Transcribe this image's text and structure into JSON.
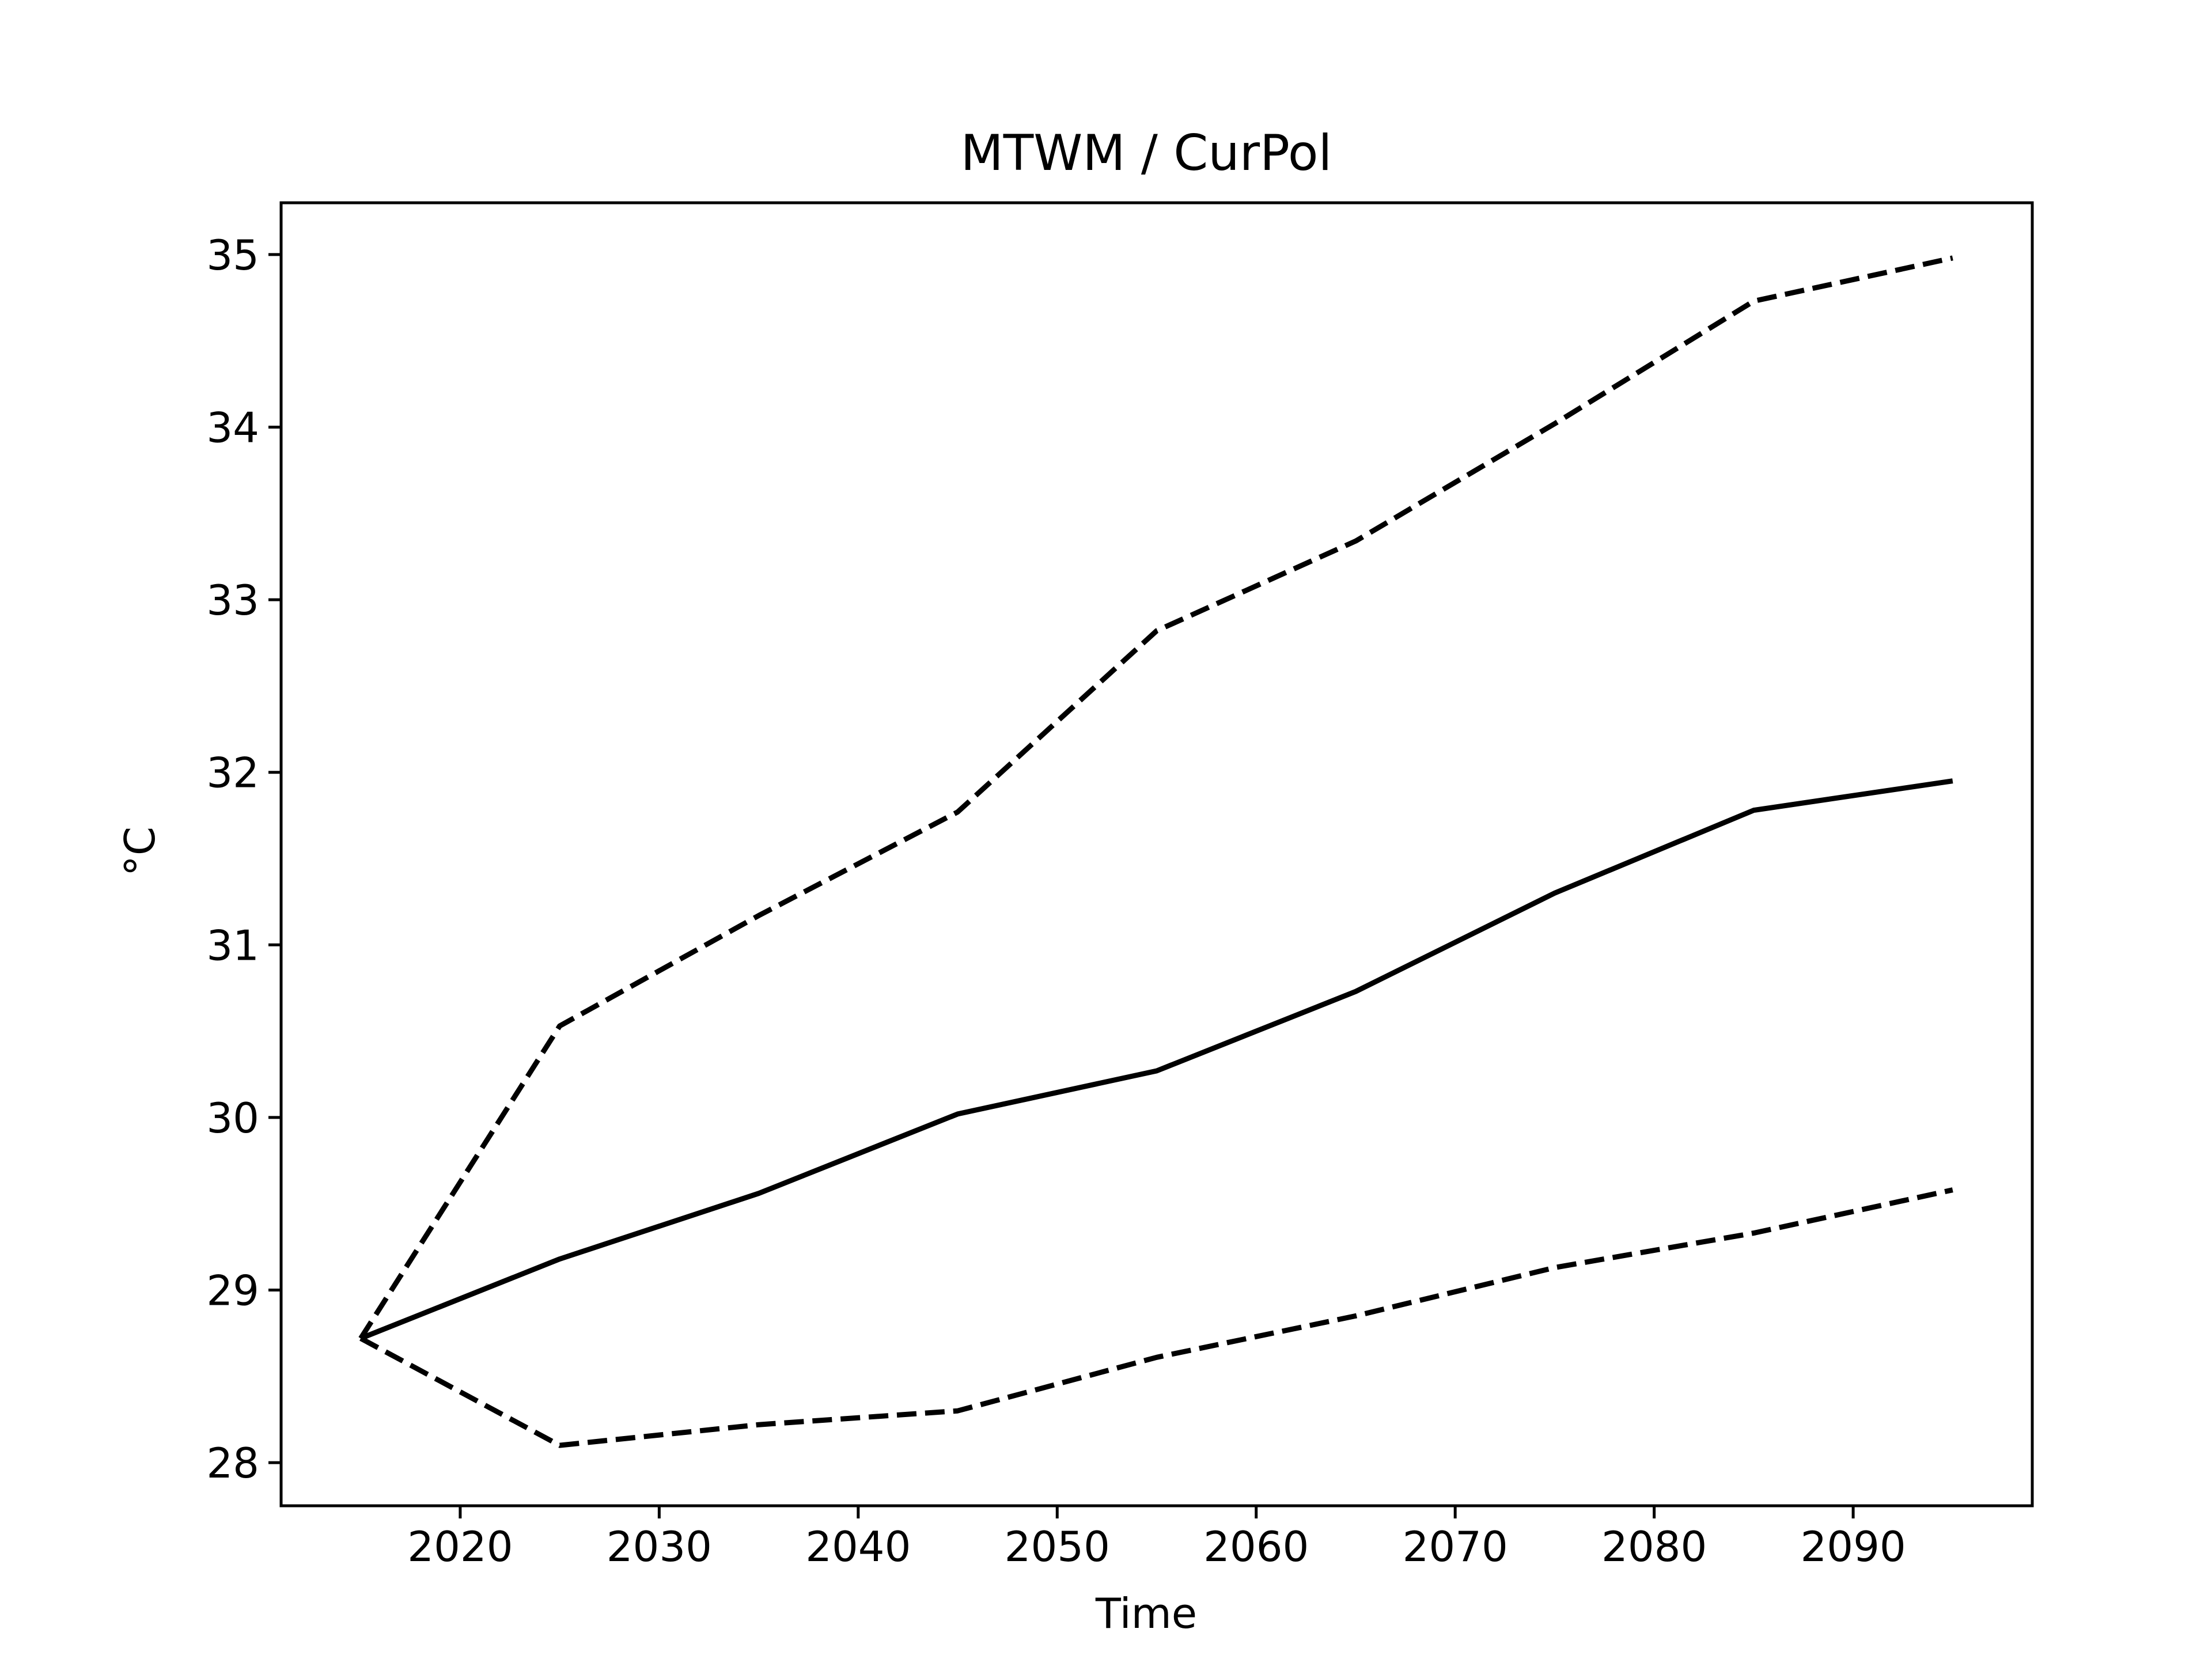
{
  "chart_data": {
    "type": "line",
    "title": "MTWM / CurPol",
    "xlabel": "Time",
    "ylabel": "°C",
    "xlim": [
      2011,
      2099
    ],
    "ylim": [
      27.75,
      35.3
    ],
    "xticks": [
      2020,
      2030,
      2040,
      2050,
      2060,
      2070,
      2080,
      2090
    ],
    "yticks": [
      28,
      29,
      30,
      31,
      32,
      33,
      34,
      35
    ],
    "grid": false,
    "x": [
      2015,
      2025,
      2035,
      2045,
      2055,
      2065,
      2075,
      2085,
      2095
    ],
    "series": [
      {
        "style": "dashed",
        "color": "#000000",
        "values": [
          28.72,
          30.53,
          31.17,
          31.77,
          32.82,
          33.34,
          34.02,
          34.73,
          34.98
        ]
      },
      {
        "style": "solid",
        "color": "#000000",
        "values": [
          28.72,
          29.18,
          29.56,
          30.02,
          30.27,
          30.73,
          31.3,
          31.78,
          31.95
        ]
      },
      {
        "style": "dashed",
        "color": "#000000",
        "values": [
          28.72,
          28.1,
          28.22,
          28.3,
          28.61,
          28.85,
          29.13,
          29.33,
          29.58
        ]
      }
    ]
  }
}
